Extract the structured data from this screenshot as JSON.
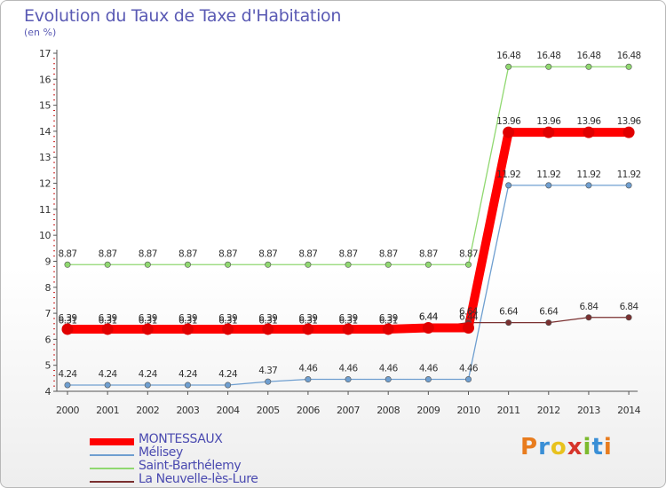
{
  "header": {
    "title": "Evolution du Taux de Taxe d'Habitation",
    "subtitle": "(en %)"
  },
  "logo": {
    "text": "Proxiti",
    "colors": [
      "#e87c1e",
      "#3a8fd6",
      "#e8c21e",
      "#d6342a",
      "#7cba2e",
      "#3a8fd6",
      "#e87c1e"
    ]
  },
  "chart_data": {
    "type": "line",
    "x": [
      "2000",
      "2001",
      "2002",
      "2003",
      "2004",
      "2005",
      "2006",
      "2007",
      "2008",
      "2009",
      "2010",
      "2011",
      "2012",
      "2013",
      "2014"
    ],
    "ylim": [
      4,
      17
    ],
    "yticks": [
      "4",
      "5",
      "6",
      "7",
      "8",
      "9",
      "10",
      "11",
      "12",
      "13",
      "14",
      "15",
      "16",
      "17"
    ],
    "grid": false,
    "legend_position": "bottom-left",
    "series": [
      {
        "name": "MONTESSAUX",
        "color": "#ff0000",
        "width": 10,
        "values": [
          6.39,
          6.39,
          6.39,
          6.39,
          6.39,
          6.39,
          6.39,
          6.39,
          6.39,
          6.44,
          6.44,
          13.96,
          13.96,
          13.96,
          13.96
        ],
        "labels": [
          "6.39",
          "6.39",
          "6.39",
          "6.39",
          "6.39",
          "6.39",
          "6.39",
          "6.39",
          "6.39",
          "6.44",
          "6.44",
          "13.96",
          "13.96",
          "13.96",
          "13.96"
        ]
      },
      {
        "name": "Mélisey",
        "color": "#6f9fd0",
        "width": 1.3,
        "values": [
          4.24,
          4.24,
          4.24,
          4.24,
          4.24,
          4.37,
          4.46,
          4.46,
          4.46,
          4.46,
          4.46,
          11.92,
          11.92,
          11.92,
          11.92
        ],
        "labels": [
          "4.24",
          "4.24",
          "4.24",
          "4.24",
          "4.24",
          "4.37",
          "4.46",
          "4.46",
          "4.46",
          "4.46",
          "4.46",
          "11.92",
          "11.92",
          "11.92",
          "11.92"
        ]
      },
      {
        "name": "Saint-Barthélemy",
        "color": "#90d870",
        "width": 1.3,
        "values": [
          8.87,
          8.87,
          8.87,
          8.87,
          8.87,
          8.87,
          8.87,
          8.87,
          8.87,
          8.87,
          8.87,
          16.48,
          16.48,
          16.48,
          16.48
        ],
        "labels": [
          "8.87",
          "8.87",
          "8.87",
          "8.87",
          "8.87",
          "8.87",
          "8.87",
          "8.87",
          "8.87",
          "8.87",
          "8.87",
          "16.48",
          "16.48",
          "16.48",
          "16.48"
        ]
      },
      {
        "name": "La Neuvelle-lès-Lure",
        "color": "#7a3030",
        "width": 1.3,
        "values": [
          6.31,
          6.31,
          6.31,
          6.31,
          6.31,
          6.31,
          6.31,
          6.31,
          6.31,
          6.44,
          6.64,
          6.64,
          6.64,
          6.84,
          6.84
        ],
        "labels": [
          "6.31",
          "6.31",
          "6.31",
          "6.31",
          "6.31",
          "6.31",
          "6.31",
          "6.31",
          "6.31",
          "6.44",
          "6.64",
          "6.64",
          "6.64",
          "6.84",
          "6.84"
        ]
      }
    ]
  }
}
